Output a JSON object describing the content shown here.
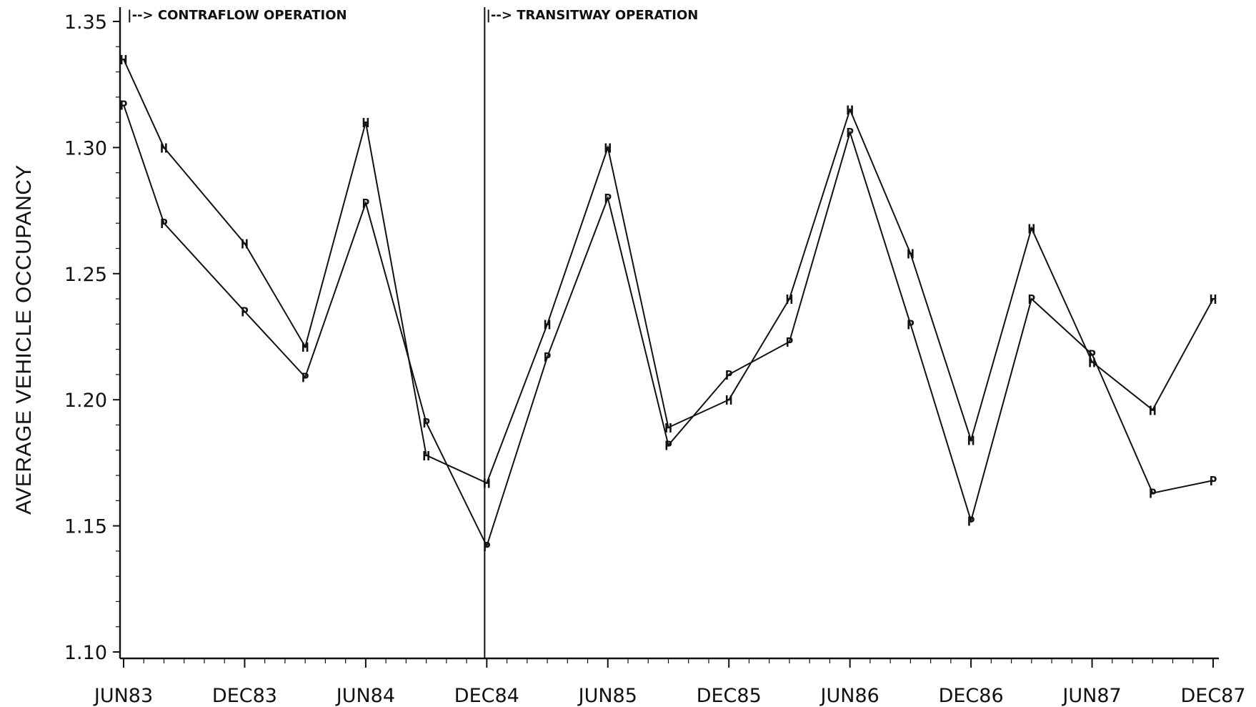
{
  "chart_data": {
    "type": "line",
    "title": "",
    "ylabel": "AVERAGE VEHICLE OCCUPANCY",
    "xlabel": "",
    "x_tick_labels": [
      "JUN83",
      "DEC83",
      "JUN84",
      "DEC84",
      "JUN85",
      "DEC85",
      "JUN86",
      "DEC86",
      "JUN87",
      "DEC87"
    ],
    "y_tick_labels": [
      "1.10",
      "1.15",
      "1.20",
      "1.25",
      "1.30",
      "1.35"
    ],
    "ylim": [
      1.1,
      1.35
    ],
    "xlim": [
      "1983-06",
      "1987-12"
    ],
    "grid": false,
    "x_axis": "date",
    "annotations": [
      {
        "text": "|--> CONTRAFLOW OPERATION",
        "date": "1983-06"
      },
      {
        "text": "|--> TRANSITWAY OPERATION",
        "date": "1984-12"
      }
    ],
    "period_boundary": "1984-12",
    "series": [
      {
        "name": "H",
        "marker": "H",
        "points": [
          {
            "date": "1983-06",
            "value": 1.335
          },
          {
            "date": "1983-08",
            "value": 1.3
          },
          {
            "date": "1983-12",
            "value": 1.262
          },
          {
            "date": "1984-03",
            "value": 1.221
          },
          {
            "date": "1984-06",
            "value": 1.31
          },
          {
            "date": "1984-09",
            "value": 1.178
          },
          {
            "date": "1984-12",
            "value": 1.167
          },
          {
            "date": "1985-03",
            "value": 1.23
          },
          {
            "date": "1985-06",
            "value": 1.3
          },
          {
            "date": "1985-09",
            "value": 1.189
          },
          {
            "date": "1985-12",
            "value": 1.2
          },
          {
            "date": "1986-03",
            "value": 1.24
          },
          {
            "date": "1986-06",
            "value": 1.315
          },
          {
            "date": "1986-09",
            "value": 1.258
          },
          {
            "date": "1986-12",
            "value": 1.184
          },
          {
            "date": "1987-03",
            "value": 1.268
          },
          {
            "date": "1987-06",
            "value": 1.215
          },
          {
            "date": "1987-09",
            "value": 1.196
          },
          {
            "date": "1987-12",
            "value": 1.24
          }
        ]
      },
      {
        "name": "P",
        "marker": "P",
        "points": [
          {
            "date": "1983-06",
            "value": 1.317
          },
          {
            "date": "1983-08",
            "value": 1.27
          },
          {
            "date": "1983-12",
            "value": 1.235
          },
          {
            "date": "1984-03",
            "value": 1.209
          },
          {
            "date": "1984-06",
            "value": 1.278
          },
          {
            "date": "1984-09",
            "value": 1.191
          },
          {
            "date": "1984-12",
            "value": 1.142
          },
          {
            "date": "1985-03",
            "value": 1.217
          },
          {
            "date": "1985-06",
            "value": 1.28
          },
          {
            "date": "1985-09",
            "value": 1.182
          },
          {
            "date": "1985-12",
            "value": 1.21
          },
          {
            "date": "1986-03",
            "value": 1.223
          },
          {
            "date": "1986-06",
            "value": 1.306
          },
          {
            "date": "1986-09",
            "value": 1.23
          },
          {
            "date": "1986-12",
            "value": 1.152
          },
          {
            "date": "1987-03",
            "value": 1.24
          },
          {
            "date": "1987-06",
            "value": 1.218
          },
          {
            "date": "1987-09",
            "value": 1.163
          },
          {
            "date": "1987-12",
            "value": 1.168
          }
        ]
      }
    ]
  }
}
